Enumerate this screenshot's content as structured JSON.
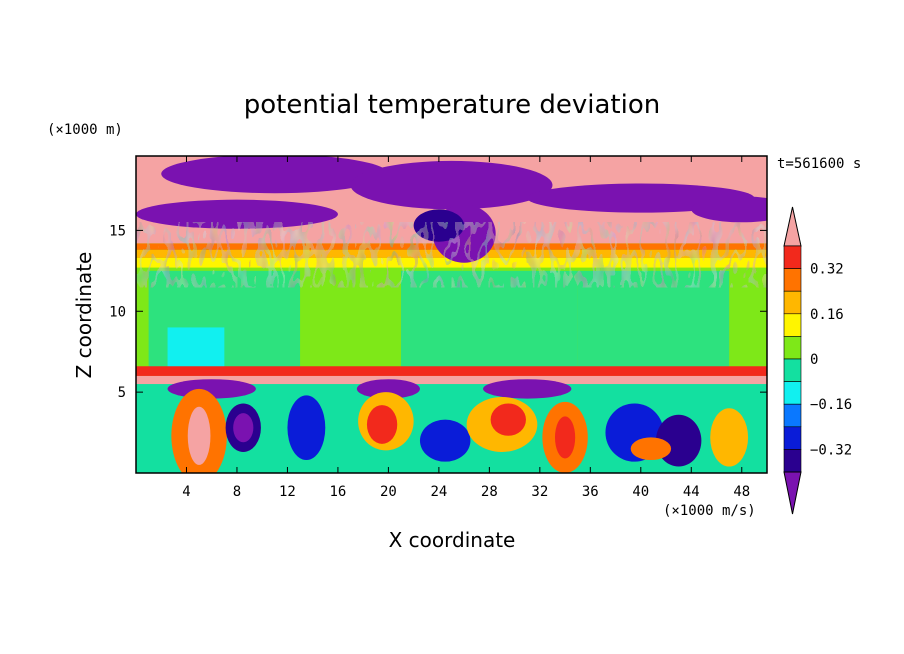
{
  "chart_data": {
    "type": "heatmap",
    "title": "potential temperature deviation",
    "xlabel": "X coordinate",
    "ylabel": "Z coordinate",
    "x_unit": "(×1000 m/s)",
    "y_unit": "(×1000 m)",
    "time_label": "t=561600 s",
    "xlim": [
      0,
      50
    ],
    "ylim": [
      0,
      19.6
    ],
    "x_ticks": [
      4,
      8,
      12,
      16,
      20,
      24,
      28,
      32,
      36,
      40,
      44,
      48
    ],
    "y_ticks": [
      5,
      10,
      15
    ],
    "colorbar": {
      "levels": [
        -0.4,
        -0.32,
        -0.24,
        -0.16,
        -0.08,
        0,
        0.08,
        0.16,
        0.24,
        0.32,
        0.4
      ],
      "tick_labels": [
        "0.32",
        "0.16",
        "0",
        "−0.16",
        "−0.32"
      ],
      "tick_values": [
        0.32,
        0.16,
        0,
        -0.16,
        -0.32
      ],
      "colors": [
        "#7a12b0",
        "#2a008f",
        "#0a1cd8",
        "#0a78ff",
        "#11f0f0",
        "#13e0a0",
        "#7ee818",
        "#fff500",
        "#ffb700",
        "#ff7300",
        "#f2291c",
        "#f5a3a3"
      ]
    }
  }
}
